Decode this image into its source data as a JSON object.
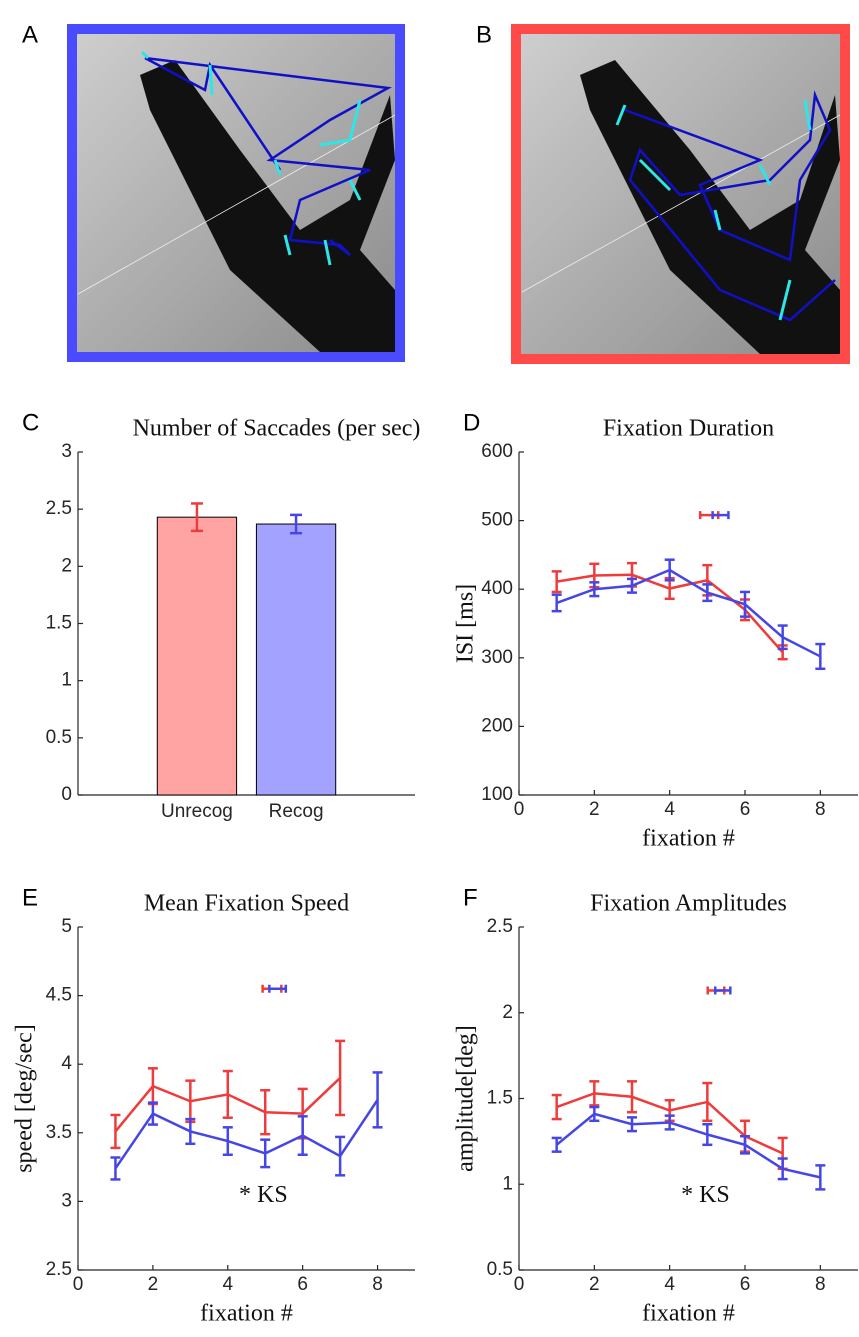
{
  "image_panels": [
    "A",
    "B"
  ],
  "chart_data": [
    {
      "type": "bar",
      "panel": "C",
      "title": "Number of Saccades (per sec)",
      "categories": [
        "Unrecog",
        "Recog"
      ],
      "values": [
        2.43,
        2.37
      ],
      "errors": [
        0.12,
        0.08
      ],
      "colors": [
        "#ffa3a3",
        "#a3a3ff"
      ],
      "error_colors": [
        "#ee3b3b",
        "#4646e6"
      ],
      "ylim": [
        0,
        3
      ],
      "yticks": [
        0,
        0.5,
        1,
        1.5,
        2,
        2.5,
        3
      ]
    },
    {
      "type": "line",
      "panel": "D",
      "title": "Fixation Duration",
      "xlabel": "fixation #",
      "ylabel": "ISI [ms]",
      "xlim": [
        0,
        9
      ],
      "xticks": [
        0,
        2,
        4,
        6,
        8
      ],
      "ylim": [
        100,
        600
      ],
      "yticks": [
        100,
        200,
        300,
        400,
        500,
        600
      ],
      "series": [
        {
          "color": "#ee3b3b",
          "x": [
            1,
            2,
            3,
            4,
            5,
            6,
            7
          ],
          "values": [
            411,
            420,
            421,
            401,
            413,
            370,
            308
          ],
          "errors": [
            15,
            17,
            17,
            15,
            22,
            15,
            10
          ]
        },
        {
          "color": "#4646e6",
          "x": [
            1,
            2,
            3,
            4,
            5,
            6,
            7,
            8
          ],
          "values": [
            380,
            400,
            405,
            428,
            395,
            378,
            330,
            302
          ],
          "errors": [
            12,
            10,
            10,
            15,
            12,
            18,
            17,
            18
          ]
        }
      ],
      "markers": [
        {
          "color": "#ee3b3b",
          "x": 5.05,
          "xerr": 0.24,
          "y": 508
        },
        {
          "color": "#4646e6",
          "x": 5.35,
          "xerr": 0.21,
          "y": 508
        }
      ]
    },
    {
      "type": "line",
      "panel": "E",
      "title": "Mean Fixation Speed",
      "xlabel": "fixation #",
      "ylabel": "speed [deg/sec]",
      "annotation": "* KS",
      "xlim": [
        0,
        9
      ],
      "xticks": [
        0,
        2,
        4,
        6,
        8
      ],
      "ylim": [
        2.5,
        5
      ],
      "yticks": [
        2.5,
        3,
        3.5,
        4,
        4.5,
        5
      ],
      "series": [
        {
          "color": "#ee3b3b",
          "x": [
            1,
            2,
            3,
            4,
            5,
            6,
            7
          ],
          "values": [
            3.51,
            3.84,
            3.73,
            3.78,
            3.65,
            3.64,
            3.9
          ],
          "errors": [
            0.12,
            0.13,
            0.15,
            0.17,
            0.16,
            0.18,
            0.27
          ]
        },
        {
          "color": "#4646e6",
          "x": [
            1,
            2,
            3,
            4,
            5,
            6,
            7,
            8
          ],
          "values": [
            3.24,
            3.64,
            3.51,
            3.44,
            3.35,
            3.48,
            3.33,
            3.74
          ],
          "errors": [
            0.08,
            0.08,
            0.09,
            0.1,
            0.1,
            0.14,
            0.14,
            0.2
          ]
        }
      ],
      "markers": [
        {
          "color": "#ee3b3b",
          "x": 5.18,
          "xerr": 0.25,
          "y": 4.55
        },
        {
          "color": "#4646e6",
          "x": 5.33,
          "xerr": 0.22,
          "y": 4.55
        }
      ]
    },
    {
      "type": "line",
      "panel": "F",
      "title": "Fixation Amplitudes",
      "xlabel": "fixation #",
      "ylabel": "amplitude[deg]",
      "annotation": "* KS",
      "xlim": [
        0,
        9
      ],
      "xticks": [
        0,
        2,
        4,
        6,
        8
      ],
      "ylim": [
        0.5,
        2.5
      ],
      "yticks": [
        0.5,
        1,
        1.5,
        2,
        2.5
      ],
      "series": [
        {
          "color": "#ee3b3b",
          "x": [
            1,
            2,
            3,
            4,
            5,
            6,
            7
          ],
          "values": [
            1.45,
            1.53,
            1.51,
            1.43,
            1.48,
            1.28,
            1.18
          ],
          "errors": [
            0.07,
            0.07,
            0.09,
            0.06,
            0.11,
            0.09,
            0.09
          ]
        },
        {
          "color": "#4646e6",
          "x": [
            1,
            2,
            3,
            4,
            5,
            6,
            7,
            8
          ],
          "values": [
            1.23,
            1.41,
            1.35,
            1.36,
            1.29,
            1.23,
            1.09,
            1.04
          ],
          "errors": [
            0.04,
            0.04,
            0.04,
            0.04,
            0.06,
            0.05,
            0.06,
            0.07
          ]
        }
      ],
      "markers": [
        {
          "color": "#ee3b3b",
          "x": 5.23,
          "xerr": 0.22,
          "y": 2.13
        },
        {
          "color": "#4646e6",
          "x": 5.41,
          "xerr": 0.2,
          "y": 2.13
        }
      ]
    }
  ]
}
